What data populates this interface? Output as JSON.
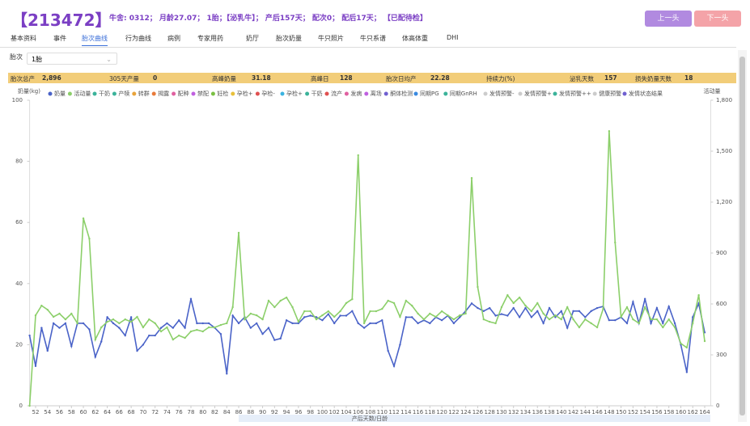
{
  "header": {
    "cow_id": "【213472】",
    "info": "牛舍: 0312； 月龄27.07； 1胎；【泌乳牛】； 产后157天； 配次0； 配后17天； 【已配待检】",
    "prev": "上一头",
    "next": "下一头"
  },
  "tabs": [
    "基本资料",
    "事件",
    "胎次曲线",
    "行为曲线",
    "病例",
    "专家用药",
    "奶厅",
    "胎次奶量",
    "牛只照片",
    "牛只系谱",
    "体高体重",
    "DHI"
  ],
  "active_tab": 2,
  "filter": {
    "label": "胎次",
    "value": "1胎"
  },
  "summary": [
    {
      "label": "胎次总产",
      "value": "2,896"
    },
    {
      "label": "305天产量",
      "value": "0"
    },
    {
      "label": "高峰奶量",
      "value": "31.18"
    },
    {
      "label": "高峰日",
      "value": "128"
    },
    {
      "label": "胎次日均产",
      "value": "22.28"
    },
    {
      "label": "持续力(%)",
      "value": ""
    },
    {
      "label": "泌乳天数",
      "value": "157"
    },
    {
      "label": "损失奶量天数",
      "value": "18"
    }
  ],
  "legend_events": [
    {
      "name": "干奶",
      "color": "#3bb39a"
    },
    {
      "name": "产犊",
      "color": "#3bb39a"
    },
    {
      "name": "转群",
      "color": "#e8a33a"
    },
    {
      "name": "揭露",
      "color": "#e87a3a"
    },
    {
      "name": "配种",
      "color": "#e060a0"
    },
    {
      "name": "禁配",
      "color": "#c060e0"
    },
    {
      "name": "妊检",
      "color": "#7ac043"
    },
    {
      "name": "孕检+",
      "color": "#e8c03a"
    },
    {
      "name": "孕检-",
      "color": "#e05050"
    },
    {
      "name": "孕检+",
      "color": "#3ab3e0"
    },
    {
      "name": "干奶",
      "color": "#3bb39a"
    },
    {
      "name": "流产",
      "color": "#e05050"
    },
    {
      "name": "发病",
      "color": "#e060a0"
    },
    {
      "name": "离场",
      "color": "#c060e0"
    },
    {
      "name": "酮体检测",
      "color": "#7060d0"
    },
    {
      "name": "同期PG",
      "color": "#3a8ae0"
    },
    {
      "name": "同期GnRH",
      "color": "#3bb39a"
    },
    {
      "name": "发情预警-",
      "color": "#cccccc"
    },
    {
      "name": "发情预警+",
      "color": "#cccccc"
    },
    {
      "name": "发情预警++",
      "color": "#3bb39a"
    },
    {
      "name": "健康预警",
      "color": "#cccccc"
    },
    {
      "name": "发情状态结果",
      "color": "#7060d0"
    }
  ],
  "chart_data": {
    "type": "line",
    "y_label": "奶量(kg)",
    "y2_label": "活动量",
    "x_label": "产后天数/日龄",
    "x": [
      51,
      52,
      53,
      54,
      55,
      56,
      57,
      58,
      59,
      60,
      61,
      62,
      63,
      64,
      65,
      66,
      67,
      68,
      69,
      70,
      71,
      72,
      73,
      74,
      75,
      76,
      77,
      78,
      79,
      80,
      81,
      82,
      83,
      84,
      85,
      86,
      87,
      88,
      89,
      90,
      91,
      92,
      93,
      94,
      95,
      96,
      97,
      98,
      99,
      100,
      101,
      102,
      103,
      104,
      105,
      106,
      107,
      108,
      109,
      110,
      111,
      112,
      113,
      114,
      115,
      116,
      117,
      118,
      119,
      120,
      121,
      122,
      123,
      124,
      125,
      126,
      127,
      128,
      129,
      130,
      131,
      132,
      133,
      134,
      135,
      136,
      137,
      138,
      139,
      140,
      141,
      142,
      143,
      144,
      145,
      146,
      147,
      148,
      149,
      150,
      151,
      152,
      153,
      154,
      155,
      156,
      157,
      158,
      159,
      160,
      161,
      162,
      163,
      164
    ],
    "xlim": [
      51,
      165
    ],
    "xticks": [
      52,
      54,
      56,
      58,
      60,
      62,
      64,
      66,
      68,
      70,
      72,
      74,
      76,
      78,
      80,
      82,
      84,
      86,
      88,
      90,
      92,
      94,
      96,
      98,
      100,
      102,
      104,
      106,
      108,
      110,
      112,
      114,
      116,
      118,
      120,
      122,
      124,
      126,
      128,
      130,
      132,
      134,
      136,
      138,
      140,
      142,
      144,
      146,
      148,
      150,
      152,
      154,
      156,
      158,
      160,
      162,
      164
    ],
    "ylim": [
      0,
      100
    ],
    "yticks": [
      0,
      20,
      40,
      60,
      80,
      100
    ],
    "y2lim": [
      0,
      1800
    ],
    "y2ticks": [
      0,
      300,
      600,
      900,
      {
        "value": 1200,
        "label": "1,200"
      },
      {
        "value": 1500,
        "label": "1,500"
      },
      {
        "value": 1800,
        "label": "1,800"
      }
    ],
    "grid": false,
    "series": [
      {
        "name": "奶量",
        "color": "#4a63c8",
        "values": [
          23,
          13,
          25.5,
          18,
          27,
          25.5,
          27,
          19.5,
          27,
          27,
          25,
          16,
          21,
          29,
          27,
          25.5,
          23,
          29,
          18,
          20,
          23,
          23,
          25.5,
          27,
          25.5,
          28,
          25.5,
          35,
          27,
          27,
          27,
          25.5,
          23.5,
          10.5,
          29.5,
          27,
          29,
          25.5,
          27,
          23.5,
          25.5,
          21.5,
          22,
          28,
          27,
          27,
          29,
          29.5,
          29,
          28,
          30,
          27,
          29.5,
          29.5,
          31,
          27,
          25.5,
          27,
          27,
          28,
          18,
          13,
          20,
          29,
          29,
          27,
          28,
          27,
          29,
          28,
          29.5,
          27,
          29,
          31,
          33.5,
          32,
          31,
          32,
          29.5,
          30,
          29.5,
          32,
          29,
          32,
          29,
          31,
          27,
          32,
          29,
          31,
          25.5,
          31,
          31,
          29,
          31,
          32,
          32.5,
          28,
          28,
          29,
          27,
          34,
          27,
          35,
          27,
          32,
          27,
          32.5,
          27,
          20,
          11,
          29,
          33.5,
          24
        ]
      },
      {
        "name": "活动量",
        "color": "#8ccf6a",
        "axis": "y2",
        "values": [
          0,
          533,
          590,
          566,
          524,
          543,
          509,
          543,
          486,
          1104,
          985,
          390,
          462,
          495,
          509,
          486,
          509,
          495,
          524,
          462,
          509,
          486,
          438,
          462,
          390,
          414,
          400,
          438,
          447,
          438,
          462,
          462,
          476,
          486,
          581,
          1019,
          509,
          543,
          533,
          509,
          619,
          581,
          619,
          638,
          581,
          495,
          557,
          557,
          509,
          533,
          557,
          524,
          557,
          605,
          628,
          1476,
          486,
          557,
          557,
          571,
          619,
          605,
          524,
          619,
          590,
          543,
          509,
          543,
          524,
          557,
          533,
          509,
          533,
          543,
          1342,
          700,
          509,
          495,
          486,
          581,
          652,
          605,
          638,
          590,
          557,
          605,
          543,
          509,
          533,
          509,
          581,
          509,
          462,
          509,
          486,
          462,
          571,
          1618,
          962,
          524,
          581,
          509,
          486,
          581,
          509,
          509,
          462,
          509,
          462,
          367,
          343,
          486,
          652,
          381
        ]
      }
    ]
  }
}
